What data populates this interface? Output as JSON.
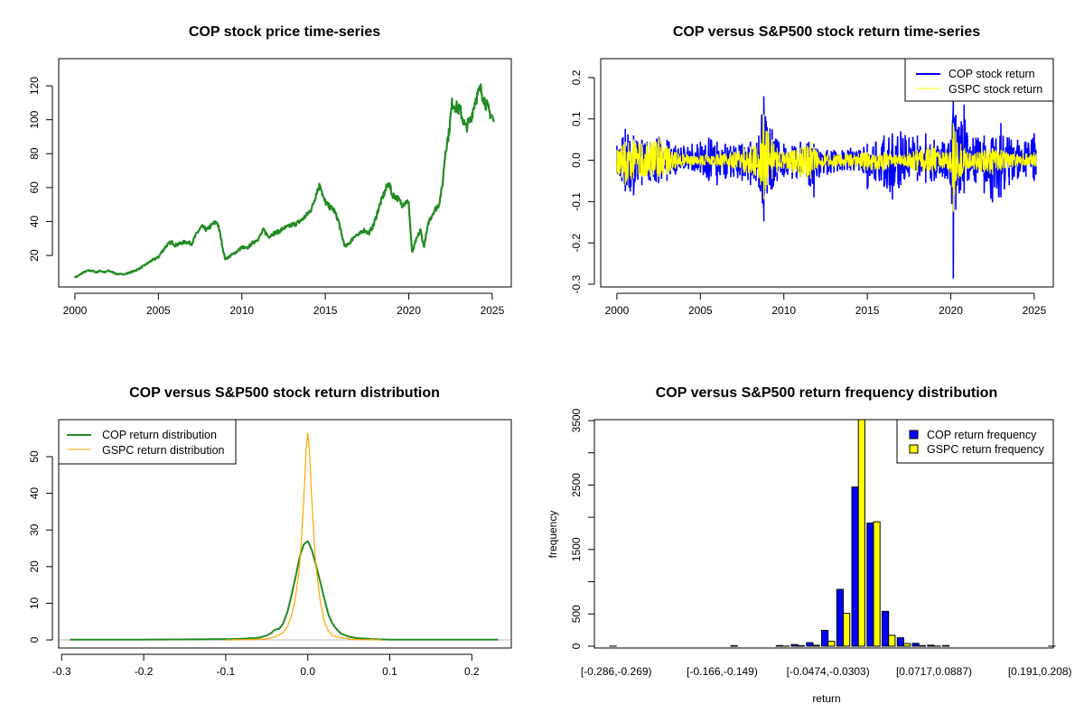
{
  "chart_data": [
    {
      "id": "price",
      "type": "line",
      "title": "COP stock price time-series",
      "xlabel": "",
      "ylabel": "",
      "xlim": [
        1999.03,
        2026.14
      ],
      "ylim": [
        1.4,
        136
      ],
      "xticks": [
        2000,
        2005,
        2010,
        2015,
        2020,
        2025
      ],
      "xtick_labels": [
        "2000",
        "2005",
        "2010",
        "2015",
        "2020",
        "2025"
      ],
      "yticks": [
        20,
        40,
        60,
        80,
        100,
        120
      ],
      "ytick_labels": [
        "20",
        "40",
        "60",
        "80",
        "100",
        "120"
      ],
      "grid": false,
      "series": [
        {
          "name": "COP",
          "color": "#228B22",
          "x": [
            2000.0,
            2000.2,
            2000.5,
            2000.8,
            2001.0,
            2001.3,
            2001.5,
            2001.8,
            2002.0,
            2002.3,
            2002.5,
            2002.8,
            2003.0,
            2003.3,
            2003.6,
            2004.0,
            2004.3,
            2004.6,
            2005.0,
            2005.2,
            2005.5,
            2005.8,
            2006.0,
            2006.3,
            2006.6,
            2007.0,
            2007.3,
            2007.6,
            2007.9,
            2008.2,
            2008.5,
            2008.7,
            2008.9,
            2009.0,
            2009.2,
            2009.5,
            2009.8,
            2010.0,
            2010.3,
            2010.6,
            2011.0,
            2011.3,
            2011.6,
            2011.9,
            2012.2,
            2012.5,
            2012.8,
            2013.0,
            2013.3,
            2013.6,
            2013.9,
            2014.2,
            2014.5,
            2014.7,
            2014.9,
            2015.2,
            2015.5,
            2015.8,
            2016.0,
            2016.2,
            2016.5,
            2016.8,
            2017.0,
            2017.3,
            2017.6,
            2017.9,
            2018.2,
            2018.5,
            2018.8,
            2019.0,
            2019.3,
            2019.6,
            2019.9,
            2020.0,
            2020.2,
            2020.4,
            2020.7,
            2020.9,
            2021.2,
            2021.5,
            2021.8,
            2022.0,
            2022.2,
            2022.4,
            2022.6,
            2022.9,
            2023.1,
            2023.4,
            2023.7,
            2024.0,
            2024.3,
            2024.6,
            2024.8,
            2025.0,
            2025.1
          ],
          "y": [
            7,
            8,
            10,
            11,
            11,
            10,
            11,
            10,
            11,
            10,
            9,
            9,
            9,
            10,
            11,
            13,
            15,
            17,
            19,
            22,
            26,
            28,
            26,
            27,
            28,
            27,
            33,
            37,
            35,
            38,
            40,
            33,
            22,
            18,
            19,
            21,
            23,
            25,
            24,
            27,
            30,
            35,
            31,
            33,
            34,
            36,
            37,
            38,
            39,
            41,
            44,
            48,
            58,
            62,
            53,
            49,
            47,
            40,
            31,
            25,
            28,
            32,
            32,
            35,
            33,
            38,
            48,
            56,
            63,
            56,
            54,
            50,
            52,
            50,
            21,
            28,
            35,
            25,
            40,
            46,
            50,
            60,
            82,
            92,
            110,
            107,
            105,
            95,
            100,
            112,
            118,
            110,
            105,
            102,
            98
          ]
        }
      ]
    },
    {
      "id": "returns",
      "type": "line",
      "title": "COP versus S&P500 stock return time-series",
      "xlabel": "",
      "ylabel": "",
      "xlim": [
        1999.03,
        2026.14
      ],
      "ylim": [
        -0.3066,
        0.2458
      ],
      "xticks": [
        2000,
        2005,
        2010,
        2015,
        2020,
        2025
      ],
      "xtick_labels": [
        "2000",
        "2005",
        "2010",
        "2015",
        "2020",
        "2025"
      ],
      "yticks": [
        -0.3,
        -0.2,
        -0.1,
        0.0,
        0.1,
        0.2
      ],
      "ytick_labels": [
        "-0.3",
        "-0.2",
        "-0.1",
        "0.0",
        "0.1",
        "0.2"
      ],
      "grid": false,
      "legend_position": "top-right",
      "series": [
        {
          "name": "COP stock return",
          "color": "#0000FF",
          "envelope_x": [
            2000.0,
            2000.5,
            2001.0,
            2001.5,
            2002.0,
            2002.5,
            2003.0,
            2003.5,
            2004.0,
            2004.5,
            2005.0,
            2005.5,
            2006.0,
            2006.5,
            2007.0,
            2007.5,
            2008.0,
            2008.5,
            2008.8,
            2009.0,
            2009.3,
            2009.6,
            2010.0,
            2010.5,
            2011.0,
            2011.5,
            2011.8,
            2012.2,
            2012.6,
            2013.0,
            2013.5,
            2014.0,
            2014.5,
            2015.0,
            2015.5,
            2016.0,
            2016.5,
            2017.0,
            2017.5,
            2018.0,
            2018.5,
            2019.0,
            2019.5,
            2020.0,
            2020.15,
            2020.3,
            2020.5,
            2020.8,
            2021.0,
            2021.5,
            2022.0,
            2022.5,
            2023.0,
            2023.5,
            2024.0,
            2024.5,
            2025.0,
            2025.1
          ],
          "upper": [
            0.035,
            0.076,
            0.06,
            0.05,
            0.045,
            0.057,
            0.05,
            0.035,
            0.035,
            0.04,
            0.045,
            0.055,
            0.045,
            0.04,
            0.035,
            0.04,
            0.045,
            0.06,
            0.155,
            0.08,
            0.075,
            0.05,
            0.04,
            0.035,
            0.045,
            0.045,
            0.04,
            0.02,
            0.025,
            0.025,
            0.025,
            0.03,
            0.025,
            0.04,
            0.045,
            0.06,
            0.065,
            0.07,
            0.055,
            0.06,
            0.065,
            0.05,
            0.045,
            0.05,
            0.145,
            0.11,
            0.08,
            0.135,
            0.06,
            0.055,
            0.06,
            0.055,
            0.09,
            0.055,
            0.05,
            0.045,
            0.065,
            0.025
          ],
          "lower": [
            -0.03,
            -0.075,
            -0.085,
            -0.06,
            -0.05,
            -0.055,
            -0.05,
            -0.035,
            -0.02,
            -0.025,
            -0.03,
            -0.05,
            -0.06,
            -0.045,
            -0.04,
            -0.05,
            -0.06,
            -0.065,
            -0.148,
            -0.08,
            -0.07,
            -0.05,
            -0.04,
            -0.045,
            -0.04,
            -0.06,
            -0.09,
            -0.03,
            -0.035,
            -0.03,
            -0.025,
            -0.025,
            -0.025,
            -0.07,
            -0.05,
            -0.065,
            -0.095,
            -0.06,
            -0.04,
            -0.05,
            -0.055,
            -0.05,
            -0.04,
            -0.06,
            -0.286,
            -0.12,
            -0.08,
            -0.08,
            -0.05,
            -0.055,
            -0.08,
            -0.102,
            -0.09,
            -0.06,
            -0.045,
            -0.04,
            -0.05,
            -0.035
          ]
        },
        {
          "name": "GSPC stock return",
          "color": "#FFFF00",
          "envelope_x": [
            2000.0,
            2000.5,
            2001.0,
            2001.5,
            2002.0,
            2002.5,
            2003.0,
            2003.5,
            2004.0,
            2005.0,
            2006.0,
            2007.0,
            2007.6,
            2008.2,
            2008.6,
            2008.8,
            2009.0,
            2009.3,
            2009.6,
            2010.0,
            2010.5,
            2011.0,
            2011.6,
            2012.0,
            2013.0,
            2014.0,
            2015.0,
            2016.0,
            2017.0,
            2018.0,
            2018.9,
            2019.5,
            2020.0,
            2020.15,
            2020.3,
            2020.6,
            2021.0,
            2022.0,
            2022.5,
            2023.0,
            2024.0,
            2025.0,
            2025.1
          ],
          "upper": [
            0.025,
            0.045,
            0.05,
            0.04,
            0.045,
            0.055,
            0.035,
            0.02,
            0.015,
            0.012,
            0.015,
            0.02,
            0.03,
            0.035,
            0.05,
            0.11,
            0.07,
            0.05,
            0.03,
            0.02,
            0.025,
            0.03,
            0.045,
            0.02,
            0.015,
            0.015,
            0.02,
            0.02,
            0.012,
            0.025,
            0.035,
            0.02,
            0.02,
            0.09,
            0.07,
            0.04,
            0.02,
            0.025,
            0.03,
            0.025,
            0.015,
            0.02,
            0.015
          ],
          "lower": [
            -0.03,
            -0.06,
            -0.045,
            -0.04,
            -0.04,
            -0.04,
            -0.035,
            -0.02,
            -0.015,
            -0.012,
            -0.015,
            -0.02,
            -0.03,
            -0.035,
            -0.06,
            -0.095,
            -0.06,
            -0.045,
            -0.03,
            -0.02,
            -0.03,
            -0.04,
            -0.045,
            -0.02,
            -0.015,
            -0.015,
            -0.025,
            -0.025,
            -0.012,
            -0.03,
            -0.03,
            -0.02,
            -0.03,
            -0.125,
            -0.05,
            -0.04,
            -0.02,
            -0.03,
            -0.035,
            -0.025,
            -0.015,
            -0.015,
            -0.015
          ]
        }
      ]
    },
    {
      "id": "density",
      "type": "line",
      "title": "COP versus S&P500 stock return distribution",
      "xlabel": "",
      "ylabel": "",
      "xlim": [
        -0.3036,
        0.2481
      ],
      "ylim": [
        -2.2,
        60.1
      ],
      "xticks": [
        -0.3,
        -0.2,
        -0.1,
        0.0,
        0.1,
        0.2
      ],
      "xtick_labels": [
        "-0.3",
        "-0.2",
        "-0.1",
        "0.0",
        "0.1",
        "0.2"
      ],
      "yticks": [
        0,
        10,
        20,
        30,
        40,
        50
      ],
      "ytick_labels": [
        "0",
        "10",
        "20",
        "30",
        "40",
        "50"
      ],
      "grid": false,
      "legend_position": "top-left",
      "series": [
        {
          "name": "COP return distribution",
          "color": "#228B22",
          "x": [
            -0.29,
            -0.2,
            -0.1,
            -0.08,
            -0.06,
            -0.05,
            -0.045,
            -0.04,
            -0.035,
            -0.03,
            -0.025,
            -0.02,
            -0.015,
            -0.01,
            -0.005,
            0.0,
            0.005,
            0.01,
            0.015,
            0.02,
            0.025,
            0.03,
            0.035,
            0.04,
            0.05,
            0.06,
            0.08,
            0.1,
            0.15,
            0.232
          ],
          "y": [
            0.1,
            0.1,
            0.2,
            0.3,
            0.6,
            1.2,
            1.8,
            2.8,
            3.0,
            4.5,
            7.5,
            12.0,
            17.0,
            22.5,
            26.0,
            27.0,
            24.5,
            20.5,
            16.0,
            11.5,
            7.0,
            4.5,
            3.0,
            1.8,
            0.9,
            0.5,
            0.2,
            0.1,
            0.1,
            0.1
          ]
        },
        {
          "name": "GSPC return distribution",
          "color": "#FFA500",
          "x": [
            -0.1,
            -0.07,
            -0.05,
            -0.04,
            -0.03,
            -0.025,
            -0.02,
            -0.015,
            -0.01,
            -0.007,
            -0.004,
            -0.002,
            0.0,
            0.002,
            0.004,
            0.007,
            0.01,
            0.015,
            0.02,
            0.025,
            0.03,
            0.04,
            0.05,
            0.06,
            0.09
          ],
          "y": [
            0.0,
            0.1,
            0.3,
            0.8,
            2.0,
            3.5,
            6.5,
            11.5,
            20.0,
            30.0,
            42.0,
            52.0,
            56.5,
            52.0,
            42.0,
            30.0,
            20.0,
            11.0,
            5.0,
            2.5,
            1.2,
            0.6,
            0.3,
            0.1,
            0.0
          ]
        }
      ]
    },
    {
      "id": "histogram",
      "type": "bar",
      "title": "COP versus S&P500 return frequency distribution",
      "xlabel": "return",
      "ylabel": "frequency",
      "ylim": [
        0,
        3550
      ],
      "yticks": [
        0,
        500,
        1000,
        1500,
        2000,
        2500,
        3000,
        3500
      ],
      "ytick_labels": [
        "0",
        "500",
        "",
        "1500",
        "",
        "2500",
        "",
        "3500"
      ],
      "grid": false,
      "legend_position": "top-right",
      "categories": [
        "[-0.286,-0.269)",
        "",
        "",
        "",
        "",
        "",
        "",
        "[-0.166,-0.149)",
        "",
        "",
        "",
        "",
        "",
        "",
        "[-0.0474,-0.0303)",
        "",
        "",
        "",
        "",
        "",
        "",
        "[0.0717,0.0887)",
        "",
        "",
        "",
        "",
        "",
        "",
        "[0.191,0.208)",
        ""
      ],
      "series": [
        {
          "name": "COP return frequency",
          "color": "#0000FF",
          "values": [
            1,
            0,
            0,
            0,
            0,
            0,
            0,
            0,
            8,
            0,
            0,
            10,
            25,
            55,
            245,
            880,
            2470,
            1910,
            540,
            130,
            45,
            15,
            10,
            0,
            0,
            0,
            0,
            0,
            0,
            1
          ]
        },
        {
          "name": "GSPC return frequency",
          "color": "#FFFF00",
          "values": [
            0,
            0,
            0,
            0,
            0,
            0,
            0,
            0,
            0,
            0,
            0,
            2,
            8,
            15,
            75,
            510,
            3600,
            1930,
            170,
            40,
            10,
            3,
            0,
            0,
            0,
            0,
            0,
            0,
            0,
            0
          ]
        }
      ]
    }
  ]
}
